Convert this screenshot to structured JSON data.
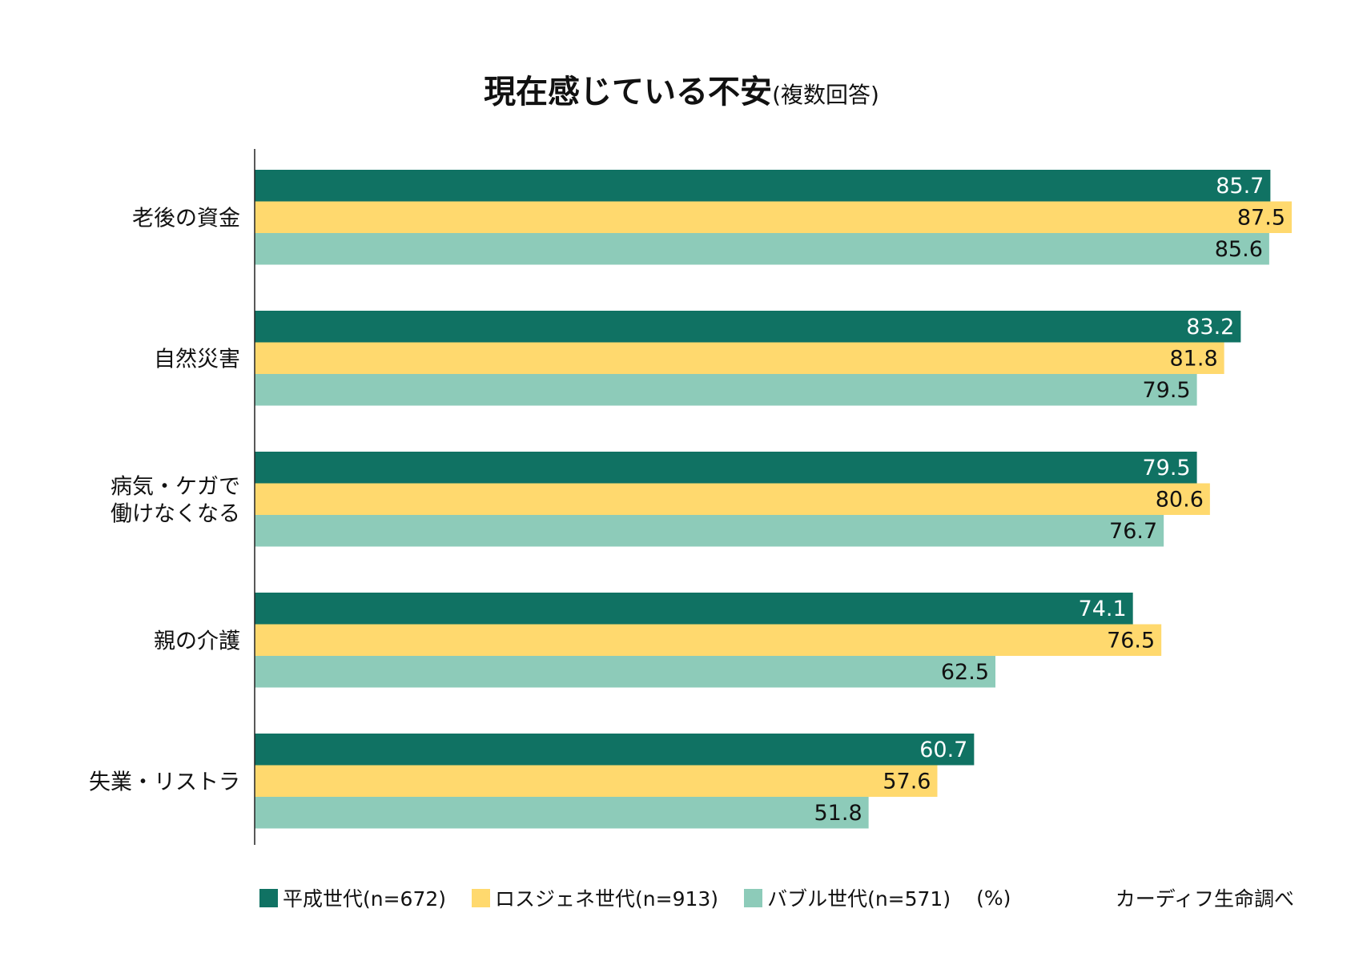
{
  "chart_data": {
    "type": "bar",
    "orientation": "horizontal",
    "title": "現在感じている不安",
    "subtitle": "(複数回答)",
    "unit": "(%)",
    "source": "カーディフ生命調べ",
    "categories": [
      "老後の資金",
      "自然災害",
      "病気・ケガで\n働けなくなる",
      "親の介護",
      "失業・リストラ"
    ],
    "series": [
      {
        "name": "平成世代(n=672)",
        "color": "#107263",
        "label_color": "#ffffff",
        "values": [
          85.7,
          83.2,
          79.5,
          74.1,
          60.7
        ]
      },
      {
        "name": "ロスジェネ世代(n=913)",
        "color": "#FFD96E",
        "label_color": "#111111",
        "values": [
          87.5,
          81.8,
          80.6,
          76.5,
          57.6
        ]
      },
      {
        "name": "バブル世代(n=571)",
        "color": "#8DCBB9",
        "label_color": "#111111",
        "values": [
          85.6,
          79.5,
          76.7,
          62.5,
          51.8
        ]
      }
    ],
    "xlim": [
      0,
      87.5
    ],
    "grid": false,
    "legend_position": "bottom"
  }
}
